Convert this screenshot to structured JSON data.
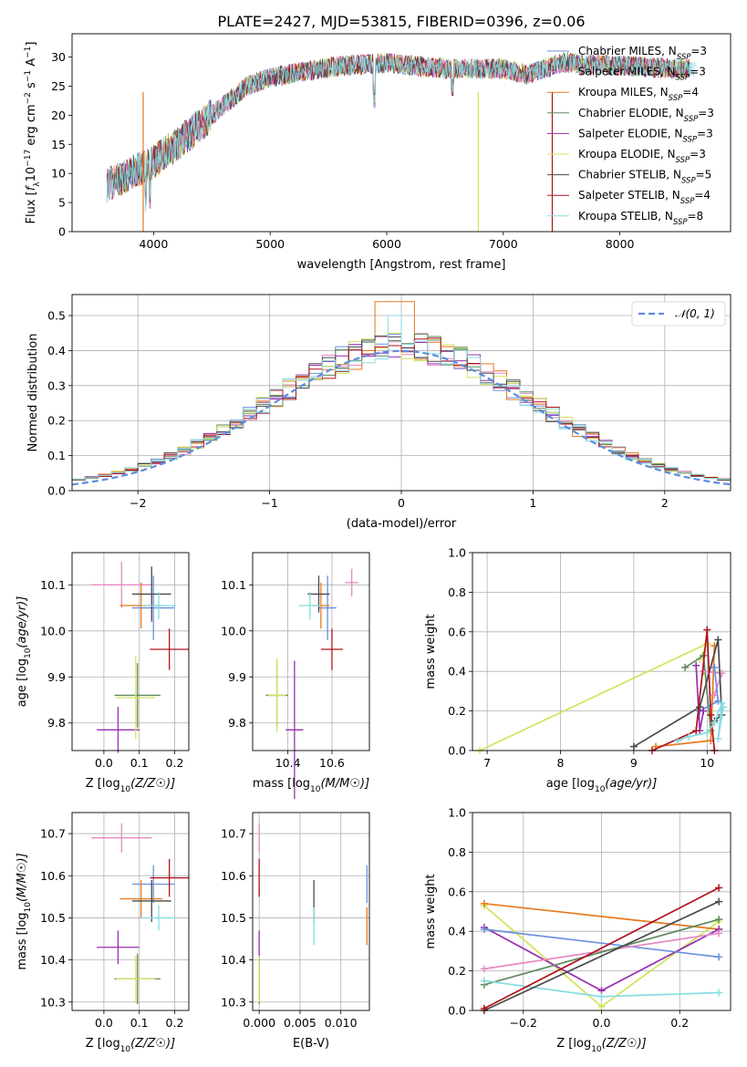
{
  "figure_title": "PLATE=2427, MJD=53815, FIBERID=0396, z=0.06",
  "colors": {
    "Chabrier MILES": "#6b8ee0",
    "Salpeter MILES": "#e78ac3",
    "Kroupa MILES": "#e6781e",
    "Chabrier ELODIE": "#5d8a5d",
    "Salpeter ELODIE": "#9a2fb0",
    "Kroupa ELODIE": "#d2e35a",
    "Chabrier STELIB": "#4a4a4a",
    "Salpeter STELIB": "#b0141e",
    "Kroupa STELIB": "#86dde0",
    "normal": "#5b8ddd"
  },
  "chart_data": [
    {
      "id": "spectrum",
      "type": "line",
      "title": "PLATE=2427, MJD=53815, FIBERID=0396, z=0.06",
      "xlabel": "wavelength [Angstrom, rest frame]",
      "ylabel": "Flux [f_λ 10^-17 erg cm^-2 s^-1 A^-1]",
      "xlim": [
        3300,
        8950
      ],
      "ylim": [
        0,
        34
      ],
      "xticks": [
        "4000",
        "5000",
        "6000",
        "7000",
        "8000"
      ],
      "yticks": [
        "0",
        "5",
        "10",
        "15",
        "20",
        "25",
        "30"
      ],
      "grid": false,
      "legend_position": "right",
      "continuum": {
        "x": [
          3600,
          3800,
          4000,
          4200,
          4500,
          4800,
          5000,
          5300,
          5600,
          6000,
          6500,
          7000,
          7200,
          7500,
          8000,
          8500
        ],
        "y": [
          8,
          10,
          12,
          15,
          20,
          25,
          26.5,
          27.5,
          28.5,
          29,
          28,
          28,
          27,
          29,
          28.5,
          28
        ]
      },
      "legend": [
        {
          "series": "Chabrier MILES",
          "text": "Chabrier MILES, N",
          "sub": "SSP",
          "tail": "=3"
        },
        {
          "series": "Salpeter MILES",
          "text": "Salpeter MILES, N",
          "sub": "SSP",
          "tail": "=3"
        },
        {
          "series": "Kroupa MILES",
          "text": "Kroupa MILES, N",
          "sub": "SSP",
          "tail": "=4"
        },
        {
          "series": "Chabrier ELODIE",
          "text": "Chabrier ELODIE, N",
          "sub": "SSP",
          "tail": "=3"
        },
        {
          "series": "Salpeter ELODIE",
          "text": "Salpeter ELODIE, N",
          "sub": "SSP",
          "tail": "=3"
        },
        {
          "series": "Kroupa ELODIE",
          "text": "Kroupa ELODIE, N",
          "sub": "SSP",
          "tail": "=3"
        },
        {
          "series": "Chabrier STELIB",
          "text": "Chabrier STELIB, N",
          "sub": "SSP",
          "tail": "=5"
        },
        {
          "series": "Salpeter STELIB",
          "text": "Salpeter STELIB, N",
          "sub": "SSP",
          "tail": "=4"
        },
        {
          "series": "Kroupa STELIB",
          "text": "Kroupa STELIB, N",
          "sub": "SSP",
          "tail": "=8"
        }
      ]
    },
    {
      "id": "residuals",
      "type": "histogram",
      "xlabel": "(data-model)/error",
      "ylabel": "Normed distribution",
      "xlim": [
        -2.5,
        2.5
      ],
      "ylim": [
        0,
        0.56
      ],
      "xticks": [
        -2,
        -1,
        0,
        1,
        2
      ],
      "xtick_labels": [
        "−2",
        "−1",
        "0",
        "1",
        "2"
      ],
      "yticks": [
        0.0,
        0.1,
        0.2,
        0.3,
        0.4,
        0.5
      ],
      "ytick_labels": [
        "0.0",
        "0.1",
        "0.2",
        "0.3",
        "0.4",
        "0.5"
      ],
      "grid": true,
      "legend_position": "top-right",
      "legend_label": "𝒩(0, 1)",
      "bin_width": 0.1,
      "normal_mean": 0,
      "normal_sigma": 1
    },
    {
      "id": "age_vs_Z",
      "type": "scatter",
      "xlabel": "Z [log10(Z/Z☉)]",
      "ylabel": "age  [log10(age/yr)]",
      "xlim": [
        -0.09,
        0.24
      ],
      "ylim": [
        9.74,
        10.17
      ],
      "xticks": [
        0.0,
        0.1,
        0.2
      ],
      "xtick_labels": [
        "0.0",
        "0.1",
        "0.2"
      ],
      "yticks": [
        9.8,
        9.9,
        10.0,
        10.1
      ],
      "ytick_labels": [
        "9.8",
        "9.9",
        "10.0",
        "10.1"
      ],
      "grid": true,
      "points": [
        {
          "series": "Chabrier MILES",
          "x": 0.14,
          "y": 10.05,
          "ex": 0.06,
          "ey": 0.07
        },
        {
          "series": "Salpeter MILES",
          "x": 0.05,
          "y": 10.1,
          "ex": 0.085,
          "ey": 0.05
        },
        {
          "series": "Kroupa MILES",
          "x": 0.105,
          "y": 10.055,
          "ex": 0.06,
          "ey": 0.05
        },
        {
          "series": "Chabrier ELODIE",
          "x": 0.095,
          "y": 9.86,
          "ex": 0.065,
          "ey": 0.07
        },
        {
          "series": "Salpeter ELODIE",
          "x": 0.04,
          "y": 9.785,
          "ex": 0.06,
          "ey": 0.05
        },
        {
          "series": "Kroupa ELODIE",
          "x": 0.09,
          "y": 9.855,
          "ex": 0.055,
          "ey": 0.09
        },
        {
          "series": "Chabrier STELIB",
          "x": 0.135,
          "y": 10.08,
          "ex": 0.055,
          "ey": 0.06
        },
        {
          "series": "Salpeter STELIB",
          "x": 0.185,
          "y": 9.96,
          "ex": 0.055,
          "ey": 0.045
        },
        {
          "series": "Kroupa STELIB",
          "x": 0.155,
          "y": 10.055,
          "ex": 0.05,
          "ey": 0.03
        }
      ]
    },
    {
      "id": "age_vs_mass",
      "type": "scatter",
      "xlabel": "mass [log10(M/M☉)]",
      "ylabel": "",
      "xlim": [
        10.24,
        10.77
      ],
      "ylim": [
        9.74,
        10.17
      ],
      "xticks": [
        10.4,
        10.6
      ],
      "xtick_labels": [
        "10.4",
        "10.6"
      ],
      "yticks": [
        9.8,
        9.9,
        10.0,
        10.1
      ],
      "ytick_labels": [
        "9.8",
        "9.9",
        "10.0",
        "10.1"
      ],
      "grid": true,
      "points": [
        {
          "series": "Chabrier MILES",
          "x": 10.58,
          "y": 10.05,
          "ex": 0.04,
          "ey": 0.07
        },
        {
          "series": "Salpeter MILES",
          "x": 10.69,
          "y": 10.105,
          "ex": 0.03,
          "ey": 0.03
        },
        {
          "series": "Kroupa MILES",
          "x": 10.55,
          "y": 10.055,
          "ex": 0.04,
          "ey": 0.05
        },
        {
          "series": "Chabrier ELODIE",
          "x": 10.35,
          "y": 9.86,
          "ex": 0.05,
          "ey": 0.07
        },
        {
          "series": "Salpeter ELODIE",
          "x": 10.43,
          "y": 9.785,
          "ex": 0.04,
          "ey": 0.15
        },
        {
          "series": "Kroupa ELODIE",
          "x": 10.35,
          "y": 9.86,
          "ex": 0.04,
          "ey": 0.08
        },
        {
          "series": "Chabrier STELIB",
          "x": 10.54,
          "y": 10.08,
          "ex": 0.05,
          "ey": 0.04
        },
        {
          "series": "Salpeter STELIB",
          "x": 10.6,
          "y": 9.96,
          "ex": 0.05,
          "ey": 0.045
        },
        {
          "series": "Kroupa STELIB",
          "x": 10.5,
          "y": 10.055,
          "ex": 0.05,
          "ey": 0.03
        }
      ]
    },
    {
      "id": "weight_vs_age",
      "type": "line",
      "xlabel": "age  [log10(age/yr)]",
      "ylabel": "mass weight",
      "xlim": [
        6.8,
        10.32
      ],
      "ylim": [
        0,
        1
      ],
      "xticks": [
        7,
        8,
        9,
        10
      ],
      "xtick_labels": [
        "7",
        "8",
        "9",
        "10"
      ],
      "yticks": [
        0.0,
        0.2,
        0.4,
        0.6,
        0.8,
        1.0
      ],
      "ytick_labels": [
        "0.0",
        "0.2",
        "0.4",
        "0.6",
        "0.8",
        "1.0"
      ],
      "grid": true,
      "series": [
        {
          "name": "Kroupa ELODIE",
          "x": [
            6.9,
            10.0,
            9.9
          ],
          "y": [
            0.0,
            0.54,
            0.46
          ]
        },
        {
          "name": "Chabrier ELODIE",
          "x": [
            9.7,
            9.95,
            10.05
          ],
          "y": [
            0.42,
            0.48,
            0.1
          ]
        },
        {
          "name": "Kroupa MILES",
          "x": [
            9.3,
            10.05,
            10.1
          ],
          "y": [
            0.02,
            0.05,
            0.53
          ]
        },
        {
          "name": "Salpeter MILES",
          "x": [
            10.1,
            10.2,
            9.95
          ],
          "y": [
            0.28,
            0.39,
            0.4
          ]
        },
        {
          "name": "Chabrier MILES",
          "x": [
            9.9,
            10.15,
            10.1
          ],
          "y": [
            0.2,
            0.25,
            0.42
          ]
        },
        {
          "name": "Salpeter ELODIE",
          "x": [
            9.85,
            9.9,
            9.95
          ],
          "y": [
            0.43,
            0.1,
            0.2
          ]
        },
        {
          "name": "Chabrier STELIB",
          "x": [
            9.0,
            9.9,
            10.15,
            10.2,
            10.1
          ],
          "y": [
            0.02,
            0.22,
            0.56,
            0.18,
            0.15
          ]
        },
        {
          "name": "Salpeter STELIB",
          "x": [
            9.25,
            9.85,
            10.0,
            10.05,
            10.1
          ],
          "y": [
            0.0,
            0.1,
            0.61,
            0.18,
            0.0
          ]
        },
        {
          "name": "Kroupa STELIB",
          "x": [
            9.6,
            9.75,
            10.0,
            10.1,
            10.2,
            10.15,
            10.22
          ],
          "y": [
            0.05,
            0.07,
            0.09,
            0.14,
            0.24,
            0.06,
            0.22
          ]
        }
      ]
    },
    {
      "id": "mass_vs_Z",
      "type": "scatter",
      "xlabel": "Z [log10(Z/Z☉)]",
      "ylabel": "mass [log10(M/M☉)]",
      "xlim": [
        -0.09,
        0.24
      ],
      "ylim": [
        10.28,
        10.75
      ],
      "xticks": [
        0.0,
        0.1,
        0.2
      ],
      "xtick_labels": [
        "0.0",
        "0.1",
        "0.2"
      ],
      "yticks": [
        10.3,
        10.4,
        10.5,
        10.6,
        10.7
      ],
      "ytick_labels": [
        "10.3",
        "10.4",
        "10.5",
        "10.6",
        "10.7"
      ],
      "grid": true,
      "points": [
        {
          "series": "Chabrier MILES",
          "x": 0.14,
          "y": 10.58,
          "ex": 0.06,
          "ey": 0.045
        },
        {
          "series": "Salpeter MILES",
          "x": 0.05,
          "y": 10.69,
          "ex": 0.085,
          "ey": 0.035
        },
        {
          "series": "Kroupa MILES",
          "x": 0.105,
          "y": 10.545,
          "ex": 0.06,
          "ey": 0.045
        },
        {
          "series": "Chabrier ELODIE",
          "x": 0.095,
          "y": 10.355,
          "ex": 0.065,
          "ey": 0.06
        },
        {
          "series": "Salpeter ELODIE",
          "x": 0.04,
          "y": 10.43,
          "ex": 0.06,
          "ey": 0.04
        },
        {
          "series": "Kroupa ELODIE",
          "x": 0.09,
          "y": 10.355,
          "ex": 0.055,
          "ey": 0.055
        },
        {
          "series": "Chabrier STELIB",
          "x": 0.135,
          "y": 10.54,
          "ex": 0.055,
          "ey": 0.05
        },
        {
          "series": "Salpeter STELIB",
          "x": 0.185,
          "y": 10.595,
          "ex": 0.055,
          "ey": 0.045
        },
        {
          "series": "Kroupa STELIB",
          "x": 0.155,
          "y": 10.5,
          "ex": 0.05,
          "ey": 0.03
        }
      ]
    },
    {
      "id": "mass_vs_EBV",
      "type": "scatter",
      "xlabel": "E(B-V)",
      "ylabel": "",
      "xlim": [
        -0.0008,
        0.0135
      ],
      "ylim": [
        10.28,
        10.75
      ],
      "xticks": [
        0.0,
        0.005,
        0.01
      ],
      "xtick_labels": [
        "0.000",
        "0.005",
        "0.010"
      ],
      "yticks": [
        10.3,
        10.4,
        10.5,
        10.6,
        10.7
      ],
      "ytick_labels": [
        "10.3",
        "10.4",
        "10.5",
        "10.6",
        "10.7"
      ],
      "grid": true,
      "points": [
        {
          "series": "Chabrier MILES",
          "x": 0.0132,
          "y": 10.58,
          "ex": 0,
          "ey": 0.045
        },
        {
          "series": "Salpeter MILES",
          "x": 0.0,
          "y": 10.69,
          "ex": 0,
          "ey": 0.035
        },
        {
          "series": "Kroupa MILES",
          "x": 0.0132,
          "y": 10.48,
          "ex": 0,
          "ey": 0.045
        },
        {
          "series": "Chabrier ELODIE",
          "x": 0.0,
          "y": 10.355,
          "ex": 0,
          "ey": 0.06
        },
        {
          "series": "Salpeter ELODIE",
          "x": 0.0,
          "y": 10.43,
          "ex": 0,
          "ey": 0.04
        },
        {
          "series": "Kroupa ELODIE",
          "x": 0.0,
          "y": 10.355,
          "ex": 0,
          "ey": 0.055
        },
        {
          "series": "Chabrier STELIB",
          "x": 0.0067,
          "y": 10.54,
          "ex": 0,
          "ey": 0.05
        },
        {
          "series": "Salpeter STELIB",
          "x": 0.0,
          "y": 10.595,
          "ex": 0,
          "ey": 0.045
        },
        {
          "series": "Kroupa STELIB",
          "x": 0.0067,
          "y": 10.48,
          "ex": 0,
          "ey": 0.045
        }
      ]
    },
    {
      "id": "weight_vs_Z",
      "type": "line",
      "xlabel": "Z [log10(Z/Z☉)]",
      "ylabel": "mass weight",
      "xlim": [
        -0.33,
        0.33
      ],
      "ylim": [
        0,
        1
      ],
      "xticks": [
        -0.2,
        0.0,
        0.2
      ],
      "xtick_labels": [
        "−0.2",
        "0.0",
        "0.2"
      ],
      "yticks": [
        0.0,
        0.2,
        0.4,
        0.6,
        0.8,
        1.0
      ],
      "ytick_labels": [
        "0.0",
        "0.2",
        "0.4",
        "0.6",
        "0.8",
        "1.0"
      ],
      "grid": true,
      "series": [
        {
          "name": "Kroupa ELODIE",
          "x": [
            -0.3,
            0.0,
            0.3
          ],
          "y": [
            0.53,
            0.02,
            0.45
          ]
        },
        {
          "name": "Kroupa MILES",
          "x": [
            -0.3,
            0.3
          ],
          "y": [
            0.54,
            0.41
          ]
        },
        {
          "name": "Salpeter ELODIE",
          "x": [
            -0.3,
            0.0,
            0.3
          ],
          "y": [
            0.42,
            0.1,
            0.41
          ]
        },
        {
          "name": "Chabrier MILES",
          "x": [
            -0.3,
            0.3
          ],
          "y": [
            0.41,
            0.27
          ]
        },
        {
          "name": "Salpeter MILES",
          "x": [
            -0.3,
            0.3
          ],
          "y": [
            0.21,
            0.39
          ]
        },
        {
          "name": "Chabrier ELODIE",
          "x": [
            -0.3,
            0.3
          ],
          "y": [
            0.13,
            0.46
          ]
        },
        {
          "name": "Kroupa STELIB",
          "x": [
            -0.3,
            0.0,
            0.3
          ],
          "y": [
            0.15,
            0.07,
            0.09
          ]
        },
        {
          "name": "Chabrier STELIB",
          "x": [
            -0.3,
            0.3
          ],
          "y": [
            0.0,
            0.55
          ]
        },
        {
          "name": "Salpeter STELIB",
          "x": [
            -0.3,
            0.3
          ],
          "y": [
            0.01,
            0.62
          ]
        }
      ]
    }
  ]
}
